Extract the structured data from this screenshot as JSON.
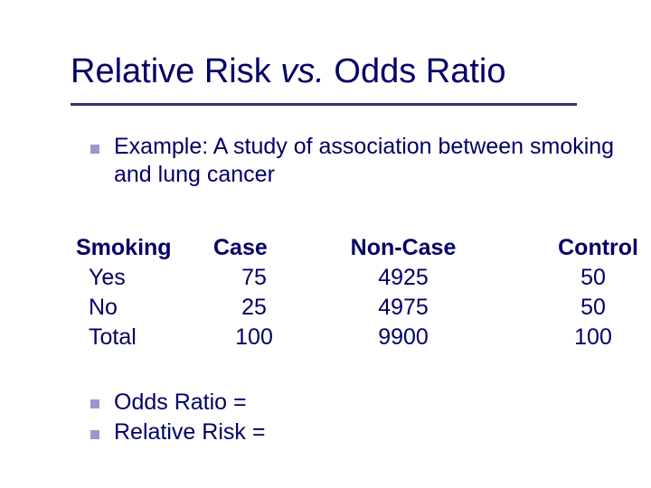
{
  "colors": {
    "text": "#000066",
    "bullet": "#9999cc",
    "rule": "#333366",
    "background": "#ffffff"
  },
  "title": {
    "part1": "Relative Risk ",
    "italic": "vs.",
    "part2": " Odds Ratio",
    "fontsize": 38
  },
  "bullets": {
    "example": "Example: A study of association between smoking and lung cancer",
    "odds": "Odds Ratio =",
    "rr": "Relative Risk ="
  },
  "table": {
    "type": "table",
    "columns": [
      "Smoking",
      "Case",
      "Non-Case",
      "Control"
    ],
    "rows": [
      {
        "smoking": "Yes",
        "case": "75",
        "noncase": "4925",
        "control": "50"
      },
      {
        "smoking": "No",
        "case": "25",
        "noncase": "4975",
        "control": "50"
      },
      {
        "smoking": "Total",
        "case": "100",
        "noncase": "9900",
        "control": "100"
      }
    ],
    "body_fontsize": 25,
    "header_fontweight": "bold"
  }
}
